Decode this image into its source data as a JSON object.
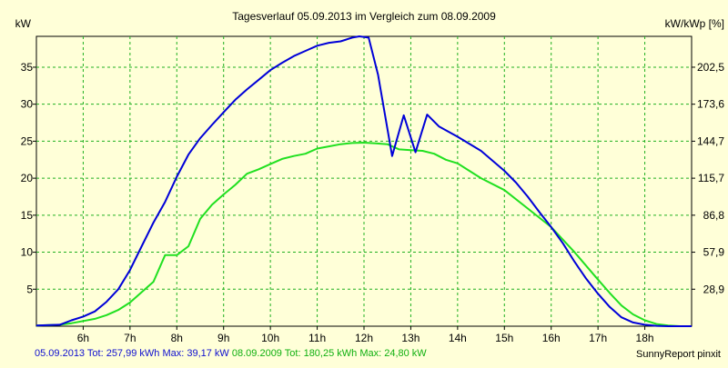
{
  "chart_data": {
    "type": "line",
    "title": "Tagesverlauf 05.09.2013 im Vergleich zum 08.09.2009",
    "ylabel_left": "kW",
    "ylabel_right": "kW/kWp [%]",
    "xlim": [
      5.0,
      19.0
    ],
    "ylim": [
      0,
      39.17
    ],
    "x_ticks": [
      6,
      7,
      8,
      9,
      10,
      11,
      12,
      13,
      14,
      15,
      16,
      17,
      18
    ],
    "x_tick_labels": [
      "6h",
      "7h",
      "8h",
      "9h",
      "10h",
      "11h",
      "12h",
      "13h",
      "14h",
      "15h",
      "16h",
      "17h",
      "18h"
    ],
    "y_ticks_left": [
      5,
      10,
      15,
      20,
      25,
      30,
      35
    ],
    "y_tick_labels_left": [
      "5",
      "10",
      "15",
      "20",
      "25",
      "30",
      "35"
    ],
    "y_tick_labels_right": [
      "28,9",
      "57,9",
      "86,8",
      "115,7",
      "144,7",
      "173,6",
      "202,5"
    ],
    "grid": true,
    "colors": {
      "background": "#ffffd8",
      "plot_background": "#ffffd8",
      "grid": "#20b020",
      "series_2013": "#0000d8",
      "series_2009": "#20e020"
    },
    "series": [
      {
        "name": "05.09.2013",
        "color": "#0000d8",
        "x": [
          5.0,
          5.5,
          5.75,
          6.0,
          6.25,
          6.5,
          6.75,
          7.0,
          7.25,
          7.5,
          7.75,
          8.0,
          8.25,
          8.5,
          8.75,
          9.0,
          9.25,
          9.5,
          9.75,
          10.0,
          10.25,
          10.5,
          10.75,
          11.0,
          11.25,
          11.5,
          11.75,
          11.9,
          12.1,
          12.3,
          12.6,
          12.85,
          13.1,
          13.35,
          13.6,
          14.0,
          14.5,
          15.0,
          15.25,
          15.5,
          15.75,
          16.0,
          16.25,
          16.5,
          16.75,
          17.0,
          17.25,
          17.5,
          17.75,
          18.0,
          18.25,
          18.5,
          18.75,
          19.0
        ],
        "y": [
          0.1,
          0.2,
          0.8,
          1.3,
          2.0,
          3.3,
          5.0,
          7.6,
          10.8,
          14.0,
          16.8,
          20.2,
          23.2,
          25.4,
          27.2,
          28.9,
          30.6,
          32.0,
          33.3,
          34.6,
          35.6,
          36.5,
          37.2,
          37.9,
          38.3,
          38.5,
          39.0,
          39.17,
          39.0,
          34.0,
          23.0,
          28.5,
          23.5,
          28.6,
          27.0,
          25.6,
          23.7,
          21.0,
          19.4,
          17.5,
          15.4,
          13.4,
          11.2,
          8.7,
          6.4,
          4.4,
          2.6,
          1.2,
          0.5,
          0.2,
          0.05,
          0.0,
          0.0,
          0.0
        ]
      },
      {
        "name": "08.09.2009",
        "color": "#20e020",
        "x": [
          5.0,
          5.5,
          5.75,
          6.0,
          6.25,
          6.5,
          6.75,
          7.0,
          7.25,
          7.5,
          7.75,
          8.0,
          8.25,
          8.5,
          8.75,
          9.0,
          9.25,
          9.5,
          9.75,
          10.0,
          10.25,
          10.5,
          10.75,
          11.0,
          11.25,
          11.5,
          11.75,
          12.0,
          12.25,
          12.5,
          12.75,
          13.0,
          13.25,
          13.5,
          13.75,
          14.0,
          14.5,
          15.0,
          15.5,
          16.0,
          16.5,
          17.0,
          17.25,
          17.5,
          17.75,
          18.0,
          18.25,
          18.5,
          18.75,
          19.0
        ],
        "y": [
          0.1,
          0.2,
          0.4,
          0.7,
          1.0,
          1.5,
          2.2,
          3.2,
          4.6,
          6.0,
          9.6,
          9.6,
          10.8,
          14.5,
          16.4,
          17.8,
          19.1,
          20.6,
          21.2,
          21.9,
          22.6,
          23.0,
          23.3,
          24.0,
          24.3,
          24.6,
          24.75,
          24.8,
          24.7,
          24.6,
          23.9,
          23.8,
          23.7,
          23.3,
          22.5,
          22.0,
          20.0,
          18.4,
          15.9,
          13.4,
          10.0,
          6.3,
          4.5,
          2.8,
          1.6,
          0.8,
          0.3,
          0.1,
          0.0,
          0.0
        ]
      }
    ]
  },
  "footer": {
    "series_2013": "05.09.2013 Tot: 257,99 kWh Max: 39,17 kW",
    "series_2009": "08.09.2009 Tot: 180,25 kWh Max: 24,80 kW",
    "credit": "SunnyReport pinxit"
  }
}
